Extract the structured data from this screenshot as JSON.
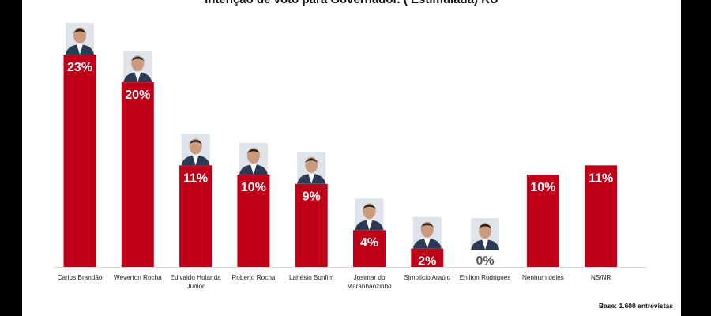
{
  "chart_data": {
    "type": "bar",
    "title": "Intenção de voto para Governador. ( Estimulada) RU",
    "categories": [
      "Carlos Brandão",
      "Weverton Rocha",
      "Edivaldo Holanda Júnior",
      "Roberto Rocha",
      "Lahésio Bonfim",
      "Josimar do Maranhãozinho",
      "Simplício Araújo",
      "Enilton Rodrigues",
      "Nenhum deles",
      "NS/NR"
    ],
    "category_lines": [
      [
        "Carlos Brandão"
      ],
      [
        "Weverton Rocha"
      ],
      [
        "Edivaldo Holanda",
        "Júnior"
      ],
      [
        "Roberto Rocha"
      ],
      [
        "Lahésio Bonfim"
      ],
      [
        "Josimar do",
        "Maranhãozinho"
      ],
      [
        "Simplício Araújo"
      ],
      [
        "Enilton Rodrigues"
      ],
      [
        "Nenhum deles"
      ],
      [
        "NS/NR"
      ]
    ],
    "values": [
      23,
      20,
      11,
      10,
      9,
      4,
      2,
      0,
      10,
      11
    ],
    "value_labels": [
      "23%",
      "20%",
      "11%",
      "10%",
      "9%",
      "4%",
      "2%",
      "0%",
      "10%",
      "11%"
    ],
    "has_photo": [
      true,
      true,
      true,
      true,
      true,
      true,
      true,
      true,
      false,
      false
    ],
    "ylim": [
      0,
      23
    ],
    "grid": false,
    "colors": {
      "bar": "#c00018",
      "label": "#ffffff",
      "zero_label": "#555555"
    }
  },
  "note": "Base: 1.600 entrevistas"
}
